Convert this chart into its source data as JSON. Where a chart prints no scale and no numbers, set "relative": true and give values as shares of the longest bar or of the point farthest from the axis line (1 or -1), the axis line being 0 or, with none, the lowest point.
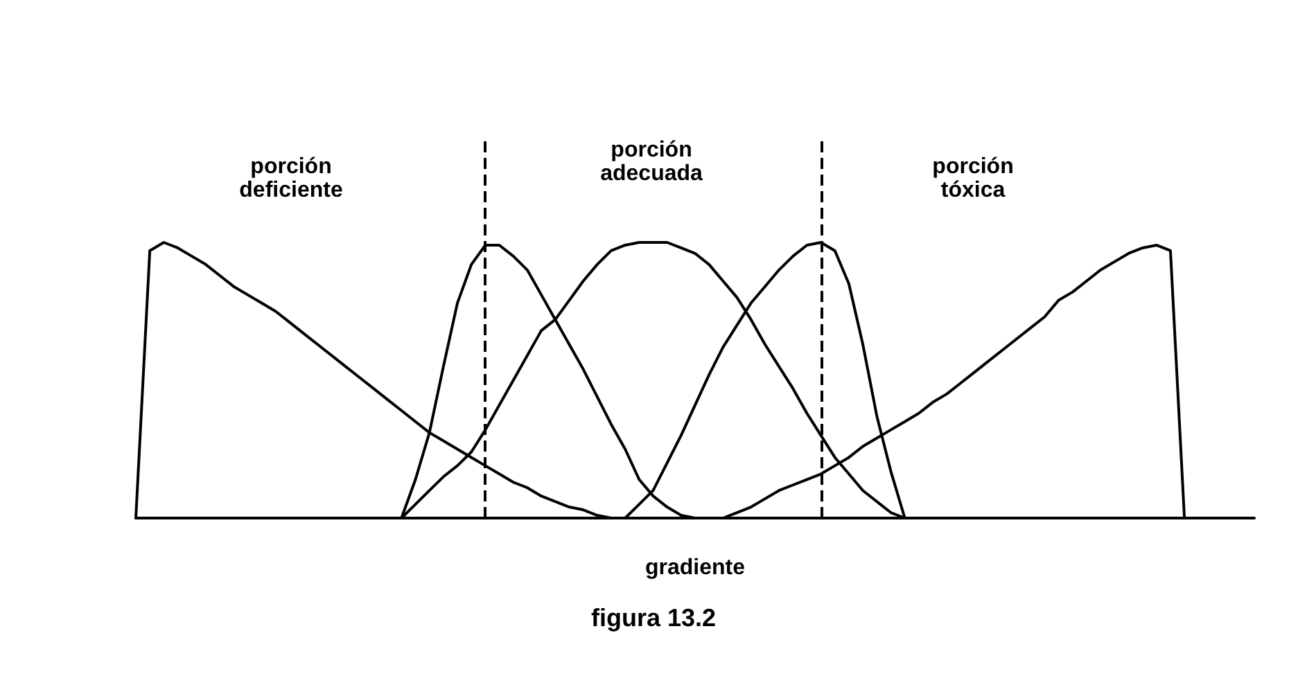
{
  "chart_data": {
    "type": "line",
    "relative": true,
    "title": "figura 13.2",
    "xlabel": "gradiente",
    "categories": [
      null,
      null,
      null,
      null,
      null,
      null,
      null,
      null,
      null,
      null,
      null,
      null,
      null,
      null,
      null,
      null,
      null,
      null,
      null,
      null,
      null,
      null,
      null,
      null,
      null,
      null,
      null,
      null,
      null,
      null,
      null,
      null,
      null,
      null,
      null,
      null,
      null,
      null,
      null,
      null,
      null,
      null,
      null,
      null,
      null,
      null,
      null,
      null,
      null,
      null,
      null,
      null,
      null,
      null,
      null,
      null,
      null,
      null,
      null,
      null,
      null,
      null,
      null,
      null,
      null,
      null,
      null,
      null,
      null,
      null,
      null,
      null,
      null,
      null,
      null,
      null,
      null,
      null,
      null,
      null,
      null
    ],
    "series": [
      {
        "color": "#000000",
        "values": [
          0,
          0.97,
          1.0,
          0.98,
          0.95,
          0.92,
          0.88,
          0.84,
          0.81,
          0.78,
          0.75,
          0.71,
          0.67,
          0.63,
          0.59,
          0.55,
          0.51,
          0.47,
          0.43,
          0.39,
          0.35,
          0.31,
          0.28,
          0.25,
          0.22,
          0.19,
          0.16,
          0.13,
          0.11,
          0.08,
          0.06,
          0.04,
          0.03,
          0.01,
          0,
          null,
          null,
          null,
          null,
          null,
          null,
          null,
          null,
          null,
          null,
          null,
          null,
          null,
          null,
          null,
          null,
          null,
          null,
          null,
          null,
          null,
          null,
          null,
          null,
          null,
          null,
          null,
          null,
          null,
          null,
          null,
          null,
          null,
          null,
          null,
          null,
          null,
          null,
          null,
          null,
          null,
          null,
          null,
          null,
          null,
          null
        ]
      },
      {
        "color": "#000000",
        "values": [
          null,
          null,
          null,
          null,
          null,
          null,
          null,
          null,
          null,
          null,
          null,
          null,
          null,
          null,
          null,
          null,
          null,
          null,
          null,
          0,
          0.14,
          0.31,
          0.55,
          0.78,
          0.92,
          0.99,
          0.99,
          0.95,
          0.9,
          0.81,
          0.72,
          0.63,
          0.54,
          0.44,
          0.34,
          0.25,
          0.14,
          0.08,
          0.04,
          0.01,
          0,
          null,
          null,
          null,
          null,
          null,
          null,
          null,
          null,
          null,
          null,
          null,
          null,
          null,
          null,
          null,
          null,
          null,
          null,
          null,
          null,
          null,
          null,
          null,
          null,
          null,
          null,
          null,
          null,
          null,
          null,
          null,
          null,
          null,
          null,
          null,
          null,
          null,
          null,
          null,
          null
        ]
      },
      {
        "color": "#000000",
        "values": [
          null,
          null,
          null,
          null,
          null,
          null,
          null,
          null,
          null,
          null,
          null,
          null,
          null,
          null,
          null,
          null,
          null,
          null,
          null,
          0,
          0.05,
          0.1,
          0.15,
          0.19,
          0.24,
          0.32,
          0.41,
          0.5,
          0.59,
          0.68,
          0.72,
          0.79,
          0.86,
          0.92,
          0.97,
          0.99,
          1.0,
          1.0,
          1.0,
          0.98,
          0.96,
          0.92,
          0.86,
          0.8,
          0.72,
          0.63,
          0.55,
          0.47,
          0.38,
          0.3,
          0.22,
          0.16,
          0.1,
          0.06,
          0.02,
          0,
          null,
          null,
          null,
          null,
          null,
          null,
          null,
          null,
          null,
          null,
          null,
          null,
          null,
          null,
          null,
          null,
          null,
          null,
          null,
          null,
          null,
          null,
          null,
          null,
          null
        ]
      },
      {
        "color": "#000000",
        "values": [
          null,
          null,
          null,
          null,
          null,
          null,
          null,
          null,
          null,
          null,
          null,
          null,
          null,
          null,
          null,
          null,
          null,
          null,
          null,
          null,
          null,
          null,
          null,
          null,
          null,
          null,
          null,
          null,
          null,
          null,
          null,
          null,
          null,
          null,
          null,
          0,
          0.05,
          0.1,
          0.2,
          0.3,
          0.41,
          0.52,
          0.62,
          0.7,
          0.78,
          0.84,
          0.9,
          0.95,
          0.99,
          1.0,
          0.97,
          0.85,
          0.63,
          0.37,
          0.17,
          0,
          null,
          null,
          null,
          null,
          null,
          null,
          null,
          null,
          null,
          null,
          null,
          null,
          null,
          null,
          null,
          null,
          null,
          null,
          null,
          null,
          null,
          null,
          null,
          null,
          null
        ]
      },
      {
        "color": "#000000",
        "values": [
          null,
          null,
          null,
          null,
          null,
          null,
          null,
          null,
          null,
          null,
          null,
          null,
          null,
          null,
          null,
          null,
          null,
          null,
          null,
          null,
          null,
          null,
          null,
          null,
          null,
          null,
          null,
          null,
          null,
          null,
          null,
          null,
          null,
          null,
          null,
          null,
          null,
          null,
          null,
          null,
          null,
          null,
          0,
          0.02,
          0.04,
          0.07,
          0.1,
          0.12,
          0.14,
          0.16,
          0.19,
          0.22,
          0.26,
          0.29,
          0.32,
          0.35,
          0.38,
          0.42,
          0.45,
          0.49,
          0.53,
          0.57,
          0.61,
          0.65,
          0.69,
          0.73,
          0.79,
          0.82,
          0.86,
          0.9,
          0.93,
          0.96,
          0.98,
          0.99,
          0.97,
          0,
          null,
          null,
          null,
          null,
          null
        ]
      }
    ],
    "annotations": [
      "porción\ndeficiente",
      "porción\nadecuada",
      "porción\ntóxica"
    ],
    "marker": "none",
    "line_style": "solid",
    "grid": false
  }
}
